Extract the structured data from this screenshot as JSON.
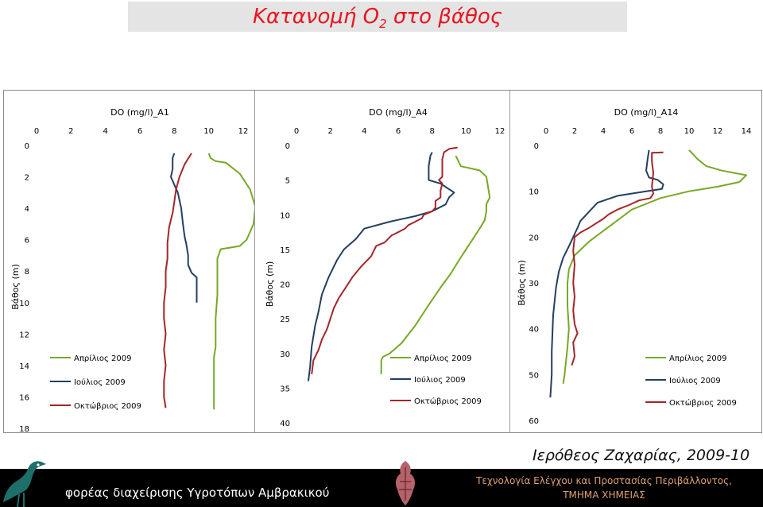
{
  "slide": {
    "title_main": "Κατανομή Ο",
    "title_sub": "2",
    "title_end": " στο βάθος",
    "author": "Ιερόθεος Ζαχαρίας, 2009-10",
    "footer_left": "φορέας διαχείρισης Υγροτόπων Αμβρακικού",
    "footer_right_line1": "Τεχνολογία Ελέγχου και Προστασίας Περιβάλλοντος,",
    "footer_right_line2": "ΤΜΗΜΑ ΧΗΜΕΙΑΣ"
  },
  "colors": {
    "april": "#77a826",
    "july": "#243f60",
    "october": "#a3262a",
    "title": "#e8141f"
  },
  "chart_data": [
    {
      "type": "line",
      "title": "DO (mg/l)_A1",
      "ylabel": "Βάθος (m)",
      "xlim": [
        0,
        12
      ],
      "xticks": [
        0,
        2,
        4,
        6,
        8,
        10,
        12
      ],
      "ylim": [
        0,
        18
      ],
      "yticks": [
        0,
        2,
        4,
        6,
        8,
        10,
        12,
        14,
        16,
        18
      ],
      "y_inverted": true,
      "x_axis_position": "top",
      "legend": "bottom-left",
      "series": [
        {
          "name": "Απρίλιος 2009",
          "color": "#77a826",
          "points": [
            [
              10.0,
              0.5
            ],
            [
              10.1,
              0.8
            ],
            [
              10.4,
              1.0
            ],
            [
              11.0,
              1.1
            ],
            [
              11.8,
              1.8
            ],
            [
              12.4,
              2.8
            ],
            [
              12.7,
              3.9
            ],
            [
              12.6,
              5.0
            ],
            [
              12.2,
              6.0
            ],
            [
              11.8,
              6.4
            ],
            [
              10.7,
              6.6
            ],
            [
              10.5,
              7.2
            ],
            [
              10.5,
              9.5
            ],
            [
              10.4,
              11.0
            ],
            [
              10.4,
              12.8
            ],
            [
              10.3,
              13.5
            ],
            [
              10.3,
              16.8
            ]
          ]
        },
        {
          "name": "Ιούλιος 2009",
          "color": "#243f60",
          "points": [
            [
              8.0,
              0.5
            ],
            [
              7.9,
              0.8
            ],
            [
              7.9,
              1.5
            ],
            [
              7.8,
              2.0
            ],
            [
              8.0,
              2.5
            ],
            [
              8.2,
              3.0
            ],
            [
              8.4,
              4.0
            ],
            [
              8.5,
              5.0
            ],
            [
              8.6,
              5.8
            ],
            [
              8.7,
              6.3
            ],
            [
              8.8,
              7.0
            ],
            [
              8.8,
              7.6
            ],
            [
              9.0,
              8.1
            ],
            [
              9.3,
              8.4
            ],
            [
              9.3,
              9.0
            ],
            [
              9.3,
              10.0
            ]
          ]
        },
        {
          "name": "Οκτώβριος 2009",
          "color": "#a3262a",
          "points": [
            [
              9.0,
              0.5
            ],
            [
              8.6,
              1.2
            ],
            [
              8.3,
              2.0
            ],
            [
              8.1,
              2.8
            ],
            [
              8.0,
              3.6
            ],
            [
              7.9,
              4.3
            ],
            [
              7.7,
              5.2
            ],
            [
              7.6,
              6.2
            ],
            [
              7.6,
              7.2
            ],
            [
              7.5,
              8.0
            ],
            [
              7.5,
              9.0
            ],
            [
              7.4,
              10.0
            ],
            [
              7.4,
              11.0
            ],
            [
              7.5,
              12.0
            ],
            [
              7.4,
              13.0
            ],
            [
              7.5,
              14.0
            ],
            [
              7.4,
              15.0
            ],
            [
              7.4,
              16.0
            ],
            [
              7.5,
              16.7
            ]
          ]
        }
      ]
    },
    {
      "type": "line",
      "title": "DO (mg/l)_A4",
      "ylabel": "Βάθος (m)",
      "xlim": [
        0,
        12
      ],
      "xticks": [
        0,
        2,
        4,
        6,
        8,
        10,
        12
      ],
      "ylim": [
        0,
        40
      ],
      "yticks": [
        0,
        5,
        10,
        15,
        20,
        25,
        30,
        35,
        40
      ],
      "y_inverted": true,
      "x_axis_position": "top",
      "legend": "bottom-center",
      "series": [
        {
          "name": "Απρίλιος 2009",
          "color": "#77a826",
          "points": [
            [
              9.4,
              1.5
            ],
            [
              9.7,
              3.0
            ],
            [
              10.8,
              3.6
            ],
            [
              11.2,
              4.5
            ],
            [
              11.3,
              6.0
            ],
            [
              11.4,
              7.5
            ],
            [
              11.2,
              8.5
            ],
            [
              11.2,
              9.5
            ],
            [
              11.1,
              10.8
            ],
            [
              10.8,
              12.0
            ],
            [
              10.4,
              13.5
            ],
            [
              10.0,
              15.0
            ],
            [
              9.6,
              16.5
            ],
            [
              9.1,
              18.5
            ],
            [
              8.5,
              20.5
            ],
            [
              7.8,
              23.0
            ],
            [
              7.0,
              26.0
            ],
            [
              6.2,
              28.5
            ],
            [
              5.5,
              30.0
            ],
            [
              5.1,
              30.5
            ],
            [
              5.0,
              31.0
            ],
            [
              5.0,
              33.0
            ]
          ]
        },
        {
          "name": "Ιούλιος 2009",
          "color": "#243f60",
          "points": [
            [
              8.0,
              1.0
            ],
            [
              7.9,
              1.5
            ],
            [
              7.8,
              3.0
            ],
            [
              7.8,
              5.0
            ],
            [
              8.5,
              5.5
            ],
            [
              9.3,
              6.8
            ],
            [
              9.0,
              7.5
            ],
            [
              8.8,
              8.5
            ],
            [
              8.0,
              9.5
            ],
            [
              7.0,
              10.2
            ],
            [
              5.5,
              11.0
            ],
            [
              4.0,
              12.0
            ],
            [
              3.5,
              13.5
            ],
            [
              2.8,
              15.0
            ],
            [
              2.4,
              16.5
            ],
            [
              1.9,
              19.0
            ],
            [
              1.5,
              21.5
            ],
            [
              1.3,
              24.0
            ],
            [
              1.1,
              26.0
            ],
            [
              0.9,
              29.0
            ],
            [
              0.8,
              32.0
            ],
            [
              0.7,
              34.0
            ]
          ]
        },
        {
          "name": "Οκτώβριος 2009",
          "color": "#a3262a",
          "points": [
            [
              9.5,
              0.3
            ],
            [
              9.0,
              0.5
            ],
            [
              8.7,
              1.0
            ],
            [
              8.6,
              2.0
            ],
            [
              8.6,
              3.0
            ],
            [
              8.6,
              4.5
            ],
            [
              8.4,
              5.0
            ],
            [
              8.6,
              5.5
            ],
            [
              8.5,
              6.5
            ],
            [
              8.5,
              7.5
            ],
            [
              8.2,
              8.0
            ],
            [
              8.2,
              9.0
            ],
            [
              8.0,
              9.5
            ],
            [
              7.5,
              10.0
            ],
            [
              7.4,
              10.5
            ],
            [
              7.0,
              11.0
            ],
            [
              6.6,
              11.5
            ],
            [
              6.4,
              12.0
            ],
            [
              6.0,
              12.5
            ],
            [
              5.6,
              13.0
            ],
            [
              5.2,
              14.0
            ],
            [
              4.7,
              14.5
            ],
            [
              4.4,
              16.0
            ],
            [
              3.8,
              17.5
            ],
            [
              3.3,
              19.0
            ],
            [
              2.9,
              20.5
            ],
            [
              2.5,
              22.0
            ],
            [
              2.2,
              23.5
            ],
            [
              2.0,
              25.0
            ],
            [
              1.8,
              26.5
            ],
            [
              1.5,
              28.0
            ],
            [
              1.3,
              29.5
            ],
            [
              1.0,
              31.0
            ],
            [
              0.9,
              33.0
            ]
          ]
        }
      ]
    },
    {
      "type": "line",
      "title": "DO (mg/l)_A14",
      "ylabel": "Βάθος (m)",
      "xlim": [
        0,
        14
      ],
      "xticks": [
        0,
        2,
        4,
        6,
        8,
        10,
        12,
        14
      ],
      "ylim": [
        0,
        60
      ],
      "yticks": [
        0,
        10,
        20,
        30,
        40,
        50,
        60
      ],
      "y_inverted": true,
      "x_axis_position": "top",
      "legend": "bottom-right",
      "series": [
        {
          "name": "Απρίλιος 2009",
          "color": "#77a826",
          "points": [
            [
              10.0,
              1.0
            ],
            [
              10.6,
              3.0
            ],
            [
              11.2,
              4.5
            ],
            [
              12.3,
              5.5
            ],
            [
              14.0,
              6.5
            ],
            [
              13.5,
              8.0
            ],
            [
              12.0,
              9.0
            ],
            [
              10.0,
              10.0
            ],
            [
              8.0,
              11.5
            ],
            [
              6.0,
              14.0
            ],
            [
              4.5,
              17.5
            ],
            [
              3.0,
              21.0
            ],
            [
              2.0,
              24.0
            ],
            [
              1.6,
              27.0
            ],
            [
              1.5,
              30.0
            ],
            [
              1.5,
              35.0
            ],
            [
              1.6,
              40.0
            ],
            [
              1.5,
              44.0
            ],
            [
              1.4,
              47.0
            ],
            [
              1.3,
              50.0
            ],
            [
              1.2,
              52.0
            ]
          ]
        },
        {
          "name": "Ιούλιος 2009",
          "color": "#243f60",
          "points": [
            [
              7.2,
              1.0
            ],
            [
              7.1,
              3.0
            ],
            [
              7.0,
              5.5
            ],
            [
              7.2,
              7.0
            ],
            [
              7.8,
              7.5
            ],
            [
              8.2,
              8.5
            ],
            [
              8.1,
              9.5
            ],
            [
              7.0,
              10.0
            ],
            [
              5.0,
              11.0
            ],
            [
              3.6,
              12.5
            ],
            [
              3.0,
              14.5
            ],
            [
              2.4,
              16.5
            ],
            [
              2.2,
              18.0
            ],
            [
              1.9,
              20.0
            ],
            [
              1.6,
              22.0
            ],
            [
              1.2,
              24.5
            ],
            [
              0.9,
              27.5
            ],
            [
              0.7,
              31.0
            ],
            [
              0.5,
              37.0
            ],
            [
              0.4,
              45.0
            ],
            [
              0.4,
              50.0
            ],
            [
              0.3,
              55.0
            ]
          ]
        },
        {
          "name": "Οκτώβριος 2009",
          "color": "#a3262a",
          "points": [
            [
              8.2,
              1.5
            ],
            [
              7.4,
              1.6
            ],
            [
              7.4,
              3.5
            ],
            [
              7.5,
              6.0
            ],
            [
              7.4,
              9.0
            ],
            [
              7.5,
              10.5
            ],
            [
              7.3,
              11.5
            ],
            [
              6.5,
              12.0
            ],
            [
              5.8,
              13.0
            ],
            [
              5.0,
              14.0
            ],
            [
              4.4,
              15.0
            ],
            [
              4.0,
              16.0
            ],
            [
              3.5,
              17.0
            ],
            [
              3.0,
              18.0
            ],
            [
              2.4,
              19.0
            ],
            [
              2.0,
              20.0
            ],
            [
              1.9,
              23.0
            ],
            [
              2.0,
              26.0
            ],
            [
              1.9,
              30.0
            ],
            [
              2.0,
              33.0
            ],
            [
              1.9,
              36.0
            ],
            [
              2.0,
              39.0
            ],
            [
              2.2,
              41.0
            ],
            [
              1.9,
              43.0
            ],
            [
              2.0,
              46.0
            ],
            [
              1.8,
              48.0
            ]
          ]
        }
      ]
    }
  ]
}
